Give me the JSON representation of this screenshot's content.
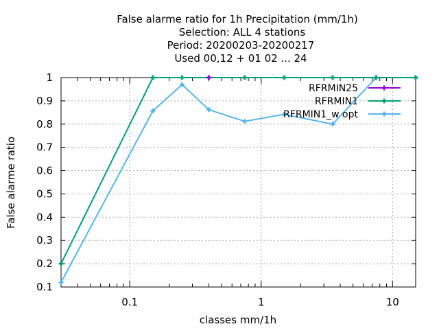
{
  "chart_data": {
    "type": "line",
    "title_lines": [
      "False alarme ratio  for 1h Precipitation (mm/1h)",
      "Selection: ALL      4 stations",
      "Period: 20200203-20200217",
      "Used  00,12  + 01 02 ... 24"
    ],
    "xlabel": "classes mm/1h",
    "ylabel": "False alarme ratio",
    "x_scale": "log",
    "xlim": [
      0.03,
      15
    ],
    "ylim": [
      0.1,
      1.0
    ],
    "x_ticks": [
      0.1,
      1,
      10
    ],
    "x_tick_labels": [
      "0.1",
      "1",
      "10"
    ],
    "y_ticks": [
      0.1,
      0.2,
      0.3,
      0.4,
      0.5,
      0.6,
      0.7,
      0.8,
      0.9,
      1.0
    ],
    "y_tick_labels": [
      "0.1",
      "0.2",
      "0.3",
      "0.4",
      "0.5",
      "0.6",
      "0.7",
      "0.8",
      "0.9",
      "1"
    ],
    "grid": true,
    "legend_position": "top-right",
    "series": [
      {
        "name": "RFRMIN25",
        "color": "#9400d3",
        "x": [
          0.4
        ],
        "y": [
          1.0
        ]
      },
      {
        "name": "RFRMIN1",
        "color": "#009e73",
        "x": [
          0.03,
          0.15,
          0.25,
          0.4,
          0.75,
          1.5,
          3.5,
          7.5,
          15
        ],
        "y": [
          0.2,
          1.0,
          1.0,
          1.0,
          1.0,
          1.0,
          1.0,
          1.0,
          1.0
        ]
      },
      {
        "name": "RFRMIN1_w opt",
        "color": "#56b4e9",
        "x": [
          0.03,
          0.15,
          0.25,
          0.4,
          0.75,
          1.5,
          3.5,
          7.5,
          15
        ],
        "y": [
          0.12,
          0.857,
          0.97,
          0.862,
          0.812,
          0.842,
          0.8,
          1.0,
          1.0
        ]
      }
    ]
  }
}
